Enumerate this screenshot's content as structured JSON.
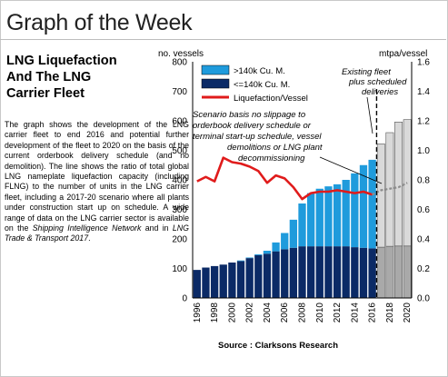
{
  "header": {
    "title": "Graph of the Week"
  },
  "article": {
    "subtitle_lines": [
      "LNG Liquefaction",
      "And The LNG",
      "Carrier Fleet"
    ],
    "body_main": "The graph shows the development of the LNG carrier fleet to end 2016 and potential further development of the fleet to 2020 on the basis of the current orderbook delivery schedule (and no demolition). The line shows the ratio of total global LNG nameplate liquefaction capacity (including FLNG) to the number of units in the LNG carrier fleet, including a 2017-20 scenario where all plants under construction start up on schedule. A wide range of data on the LNG carrier sector is available on the ",
    "body_link1": "Shipping Intelligence Network",
    "body_and": " and in ",
    "body_link2": "LNG Trade & Transport 2017",
    "body_end": ".",
    "source": "Source : Clarksons Research"
  },
  "chart_data": {
    "type": "bar",
    "left_axis_label": "no. vessels",
    "right_axis_label": "mtpa/vessel",
    "ylim": [
      0,
      800
    ],
    "y_ticks": [
      0,
      100,
      200,
      300,
      400,
      500,
      600,
      700,
      800
    ],
    "y2lim": [
      0,
      1.6
    ],
    "y2_ticks": [
      "0.0",
      "0.2",
      "0.4",
      "0.6",
      "0.8",
      "1.0",
      "1.2",
      "1.4",
      "1.6"
    ],
    "categories": [
      "1996",
      "1997",
      "1998",
      "1999",
      "2000",
      "2001",
      "2002",
      "2003",
      "2004",
      "2005",
      "2006",
      "2007",
      "2008",
      "2009",
      "2010",
      "2011",
      "2012",
      "2013",
      "2014",
      "2015",
      "2016",
      "2017",
      "2018",
      "2019",
      "2020"
    ],
    "x_tick_labels": [
      "1996",
      "",
      "1998",
      "",
      "2000",
      "",
      "2002",
      "",
      "2004",
      "",
      "2006",
      "",
      "2008",
      "",
      "2010",
      "",
      "2012",
      "",
      "2014",
      "",
      "2016",
      "",
      "2018",
      "",
      "2020"
    ],
    "forecast_from": "2017",
    "series": [
      {
        "name": "<=140k Cu. M.",
        "color": "#0b2a66",
        "forecast_color": "#a9a9a9",
        "values": [
          95,
          103,
          108,
          113,
          120,
          125,
          135,
          145,
          150,
          158,
          165,
          170,
          175,
          175,
          175,
          175,
          175,
          175,
          172,
          170,
          168,
          172,
          175,
          176,
          176
        ]
      },
      {
        "name": ">140k Cu. M.",
        "color": "#1f9bdc",
        "forecast_color": "#d9d9d9",
        "values": [
          0,
          0,
          0,
          0,
          0,
          2,
          2,
          3,
          10,
          30,
          55,
          95,
          145,
          180,
          195,
          203,
          210,
          225,
          250,
          280,
          300,
          350,
          385,
          420,
          428
        ]
      },
      {
        "name": "Liquefaction/Vessel",
        "type": "line",
        "color": "#e01b1b",
        "forecast_color": "#8c8c8c",
        "values": [
          0.79,
          0.82,
          0.79,
          0.95,
          0.92,
          0.91,
          0.89,
          0.86,
          0.78,
          0.83,
          0.81,
          0.75,
          0.67,
          0.71,
          0.72,
          0.72,
          0.73,
          0.72,
          0.71,
          0.72,
          0.7,
          0.73,
          0.74,
          0.75,
          0.78
        ]
      }
    ],
    "annotations": {
      "fleet": [
        "Existing fleet",
        "plus scheduled",
        "deliveries"
      ],
      "scenario": [
        "Scenario basis no slippage to",
        "orderbook delivery schedule or",
        "terminal start-up schedule, vessel",
        "demolitions or LNG plant",
        "decommissioning"
      ]
    }
  }
}
